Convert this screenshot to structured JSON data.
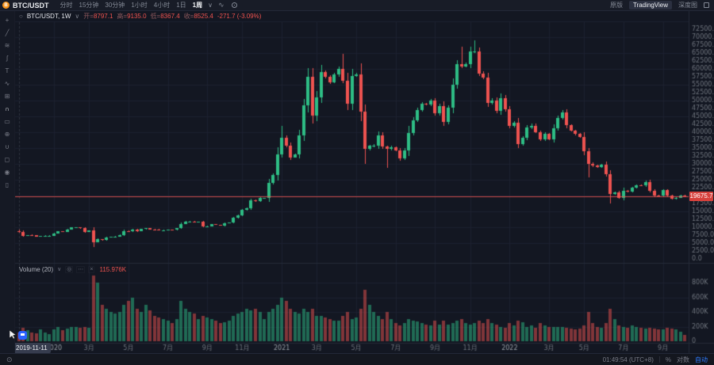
{
  "header": {
    "logo_letter": "B",
    "symbol": "BTC/USDT",
    "intervals": [
      "分时",
      "15分钟",
      "30分钟",
      "1小时",
      "4小时",
      "1日"
    ],
    "selected_interval": "1周",
    "caret": "∨",
    "wave_icon": "∿",
    "tabs": {
      "original": "原版",
      "tradingview": "TradingView",
      "depth": "深度图"
    }
  },
  "toolbar": {
    "icons": [
      {
        "name": "crosshair",
        "glyph": "+"
      },
      {
        "name": "trend-line",
        "glyph": "╱"
      },
      {
        "name": "fib-retracement",
        "glyph": "≋"
      },
      {
        "name": "brush",
        "glyph": "ʃ"
      },
      {
        "name": "text",
        "glyph": "T"
      },
      {
        "name": "xabcd-pattern",
        "glyph": "∿"
      },
      {
        "name": "long-short-position",
        "glyph": "⊞"
      },
      {
        "name": "magnet",
        "glyph": "∩"
      },
      {
        "name": "measure",
        "glyph": "▭"
      },
      {
        "name": "zoom-in",
        "glyph": "⊕"
      },
      {
        "name": "magnet-strong",
        "glyph": "∪"
      },
      {
        "name": "lock-all",
        "glyph": "◻"
      },
      {
        "name": "hide-all",
        "glyph": "◉"
      },
      {
        "name": "remove-all",
        "glyph": "▯"
      }
    ]
  },
  "legend": {
    "icon": "○",
    "title": "BTC/USDT, 1W",
    "caret": "∨",
    "labels": {
      "open": "开=",
      "high": "高=",
      "low": "低=",
      "close": "收="
    },
    "values": {
      "open": "8797.1",
      "high": "9135.0",
      "low": "8367.4",
      "close": "8525.4"
    },
    "change": "-271.7 (-3.09%)"
  },
  "volume": {
    "title": "Volume (20)",
    "caret": "∨",
    "icons": [
      "◎",
      "⋯",
      "×"
    ],
    "value": "115.976K"
  },
  "price_scale": {
    "last_price_label": "19675.7"
  },
  "axis": {
    "date_tooltip": "2019-11-11"
  },
  "footer": {
    "pin_icon": "⊙",
    "clock": "01:49:54 (UTC+8)",
    "percent": "%",
    "log": "对数",
    "auto": "自动"
  },
  "colors": {
    "up": "#2ebd85",
    "down": "#ef5350",
    "price_line": "#ef5350",
    "accent_blue": "#2962ff",
    "axis_text": "#70767f",
    "grid": "#1d2230",
    "background": "#131722"
  },
  "chart_data": {
    "type": "candlestick",
    "symbol": "BTC/USDT",
    "interval": "1W",
    "start_date": "2019-11-11",
    "last_price": 19675.7,
    "first_open": 8797.1,
    "price_axis": {
      "min": 0,
      "max": 75000,
      "tick_step": 2500,
      "grid_step": 5000
    },
    "volume_axis": {
      "max_k": 900,
      "ticks_k": [
        800,
        600,
        400,
        200,
        0
      ]
    },
    "time_ticks": [
      {
        "i": 8,
        "label": "2020",
        "major": true
      },
      {
        "i": 16,
        "label": "3月"
      },
      {
        "i": 25,
        "label": "5月"
      },
      {
        "i": 34,
        "label": "7月"
      },
      {
        "i": 43,
        "label": "9月"
      },
      {
        "i": 51,
        "label": "11月"
      },
      {
        "i": 60,
        "label": "2021",
        "major": true
      },
      {
        "i": 68,
        "label": "3月"
      },
      {
        "i": 77,
        "label": "5月"
      },
      {
        "i": 86,
        "label": "7月"
      },
      {
        "i": 95,
        "label": "9月"
      },
      {
        "i": 103,
        "label": "11月"
      },
      {
        "i": 112,
        "label": "2022",
        "major": true
      },
      {
        "i": 121,
        "label": "3月"
      },
      {
        "i": 129,
        "label": "5月"
      },
      {
        "i": 138,
        "label": "7月"
      },
      {
        "i": 147,
        "label": "9月"
      }
    ],
    "closes": [
      8525,
      7300,
      7550,
      7500,
      7100,
      7150,
      7300,
      7350,
      8100,
      8650,
      8600,
      9350,
      9900,
      9900,
      9650,
      8550,
      8900,
      5350,
      6200,
      5900,
      6750,
      6900,
      7100,
      7550,
      8800,
      8700,
      9350,
      8750,
      9450,
      9750,
      9350,
      9300,
      9000,
      9050,
      9250,
      9150,
      9700,
      11100,
      11700,
      11850,
      11650,
      11700,
      10250,
      10350,
      10950,
      10750,
      10550,
      11300,
      11500,
      13050,
      13800,
      15500,
      16050,
      18400,
      18200,
      19150,
      19150,
      23900,
      26450,
      33000,
      38150,
      35850,
      32100,
      33100,
      38900,
      48600,
      57400,
      45150,
      50950,
      59000,
      57400,
      55800,
      58200,
      60000,
      56200,
      49050,
      57800,
      58250,
      46450,
      34700,
      35650,
      35800,
      39000,
      35600,
      34700,
      35300,
      34250,
      31800,
      34300,
      39850,
      43800,
      47100,
      48900,
      48800,
      49950,
      46050,
      48300,
      43200,
      47700,
      54950,
      61550,
      60850,
      61500,
      65500,
      65500,
      58600,
      57250,
      49250,
      50100,
      46700,
      50800,
      47300,
      41900,
      43100,
      36250,
      38150,
      41500,
      42100,
      40100,
      37700,
      39400,
      37800,
      41250,
      44550,
      46300,
      42250,
      40400,
      39450,
      38600,
      34050,
      30100,
      29450,
      29000,
      29850,
      26750,
      20550,
      21050,
      19250,
      21600,
      21200,
      22450,
      23300,
      23175,
      24300,
      21500,
      20050,
      19950,
      21650,
      20100,
      18925,
      19300,
      19950,
      19675
    ],
    "volumes_k": [
      116,
      180,
      150,
      120,
      110,
      160,
      120,
      100,
      160,
      200,
      150,
      170,
      190,
      200,
      180,
      190,
      180,
      900,
      800,
      500,
      450,
      400,
      380,
      400,
      500,
      550,
      600,
      450,
      400,
      500,
      420,
      350,
      330,
      300,
      280,
      250,
      300,
      550,
      450,
      400,
      380,
      300,
      350,
      330,
      300,
      280,
      250,
      260,
      280,
      350,
      380,
      400,
      450,
      420,
      450,
      400,
      300,
      400,
      450,
      500,
      600,
      550,
      450,
      400,
      380,
      450,
      400,
      450,
      350,
      350,
      330,
      300,
      280,
      280,
      350,
      400,
      300,
      320,
      450,
      700,
      500,
      400,
      350,
      300,
      400,
      300,
      250,
      220,
      250,
      300,
      280,
      270,
      250,
      230,
      220,
      280,
      230,
      280,
      230,
      250,
      280,
      300,
      250,
      230,
      250,
      280,
      250,
      300,
      250,
      230,
      200,
      180,
      250,
      220,
      280,
      260,
      200,
      220,
      180,
      250,
      220,
      200,
      190,
      200,
      200,
      180,
      170,
      160,
      170,
      220,
      400,
      250,
      200,
      180,
      250,
      450,
      300,
      220,
      200,
      180,
      220,
      200,
      180,
      170,
      180,
      170,
      160,
      160,
      180,
      170,
      160,
      130,
      90
    ],
    "wick_highs": {
      "0": 9135,
      "60": 41950,
      "74": 64850,
      "101": 67000,
      "104": 69000
    },
    "wick_lows": {
      "0": 8367,
      "17": 3850,
      "79": 30000,
      "84": 28800,
      "130": 25800,
      "135": 17600
    }
  }
}
